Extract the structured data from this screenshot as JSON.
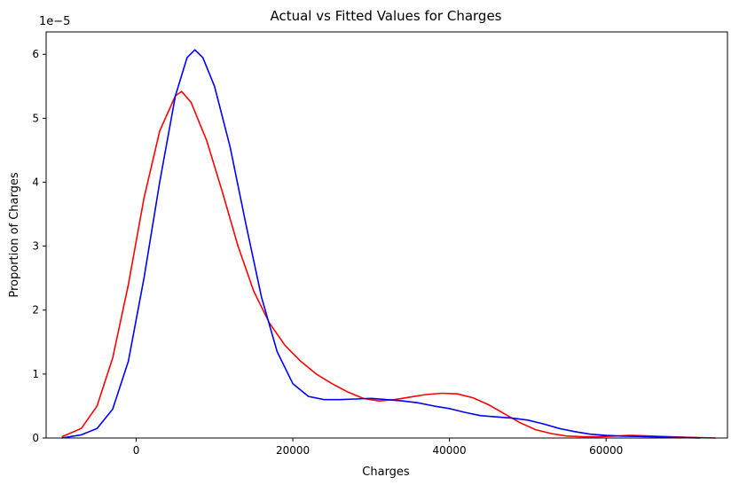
{
  "chart_data": {
    "type": "line",
    "title": "Actual vs Fitted Values for Charges",
    "xlabel": "Charges",
    "ylabel": "Proportion of Charges",
    "y_scale_label": "1e−5",
    "xlim": [
      -11500,
      75500
    ],
    "ylim": [
      0,
      6.35
    ],
    "x_ticks": [
      0,
      20000,
      40000,
      60000
    ],
    "x_tick_labels": [
      "0",
      "20000",
      "40000",
      "60000"
    ],
    "y_ticks": [
      0,
      1,
      2,
      3,
      4,
      5,
      6
    ],
    "y_tick_labels": [
      "0",
      "1",
      "2",
      "3",
      "4",
      "5",
      "6"
    ],
    "grid": false,
    "series": [
      {
        "color": "#ff0000",
        "points": [
          [
            -9500,
            0.02
          ],
          [
            -7000,
            0.15
          ],
          [
            -5000,
            0.5
          ],
          [
            -3000,
            1.25
          ],
          [
            -1000,
            2.4
          ],
          [
            1000,
            3.75
          ],
          [
            3000,
            4.8
          ],
          [
            5000,
            5.35
          ],
          [
            5800,
            5.42
          ],
          [
            7000,
            5.25
          ],
          [
            9000,
            4.65
          ],
          [
            11000,
            3.85
          ],
          [
            13000,
            3.0
          ],
          [
            15000,
            2.3
          ],
          [
            17000,
            1.8
          ],
          [
            19000,
            1.45
          ],
          [
            21000,
            1.2
          ],
          [
            23000,
            1.0
          ],
          [
            25000,
            0.85
          ],
          [
            27000,
            0.72
          ],
          [
            29000,
            0.62
          ],
          [
            31000,
            0.58
          ],
          [
            33000,
            0.6
          ],
          [
            35000,
            0.64
          ],
          [
            37000,
            0.68
          ],
          [
            39000,
            0.7
          ],
          [
            41000,
            0.69
          ],
          [
            43000,
            0.63
          ],
          [
            45000,
            0.52
          ],
          [
            47000,
            0.38
          ],
          [
            49000,
            0.24
          ],
          [
            51000,
            0.13
          ],
          [
            53000,
            0.07
          ],
          [
            55000,
            0.03
          ],
          [
            57000,
            0.02
          ],
          [
            59000,
            0.02
          ],
          [
            61000,
            0.03
          ],
          [
            63000,
            0.04
          ],
          [
            65000,
            0.035
          ],
          [
            68000,
            0.02
          ],
          [
            71000,
            0.01
          ],
          [
            74000,
            0.0
          ]
        ]
      },
      {
        "color": "#0000ff",
        "points": [
          [
            -9500,
            0.0
          ],
          [
            -7000,
            0.05
          ],
          [
            -5000,
            0.15
          ],
          [
            -3000,
            0.45
          ],
          [
            -1000,
            1.2
          ],
          [
            1000,
            2.5
          ],
          [
            3000,
            4.0
          ],
          [
            5000,
            5.35
          ],
          [
            6500,
            5.95
          ],
          [
            7500,
            6.07
          ],
          [
            8500,
            5.95
          ],
          [
            10000,
            5.5
          ],
          [
            12000,
            4.55
          ],
          [
            14000,
            3.35
          ],
          [
            16000,
            2.2
          ],
          [
            18000,
            1.35
          ],
          [
            20000,
            0.85
          ],
          [
            22000,
            0.65
          ],
          [
            24000,
            0.6
          ],
          [
            26000,
            0.6
          ],
          [
            28000,
            0.61
          ],
          [
            30000,
            0.62
          ],
          [
            32000,
            0.6
          ],
          [
            34000,
            0.58
          ],
          [
            36000,
            0.55
          ],
          [
            38000,
            0.5
          ],
          [
            40000,
            0.46
          ],
          [
            42000,
            0.4
          ],
          [
            44000,
            0.35
          ],
          [
            46000,
            0.33
          ],
          [
            48000,
            0.31
          ],
          [
            50000,
            0.28
          ],
          [
            52000,
            0.22
          ],
          [
            54000,
            0.15
          ],
          [
            56000,
            0.1
          ],
          [
            58000,
            0.06
          ],
          [
            60000,
            0.04
          ],
          [
            62000,
            0.03
          ],
          [
            64000,
            0.025
          ],
          [
            66000,
            0.02
          ],
          [
            69000,
            0.01
          ],
          [
            72000,
            0.0
          ]
        ]
      }
    ]
  }
}
